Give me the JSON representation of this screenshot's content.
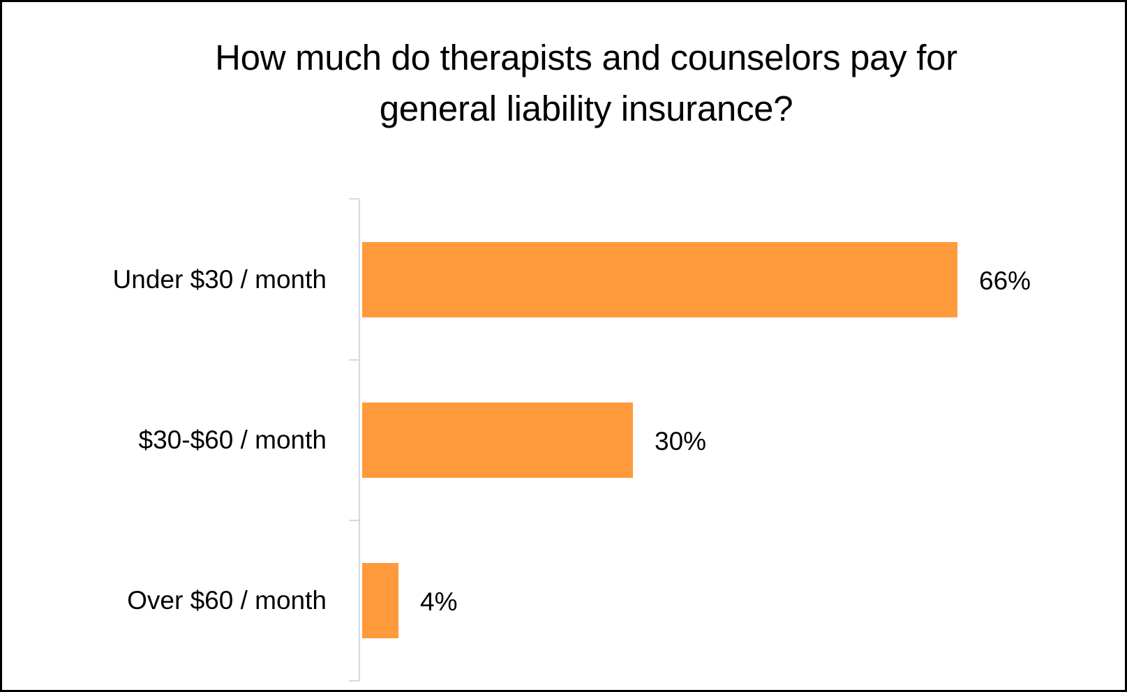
{
  "chart_data": {
    "type": "bar",
    "orientation": "horizontal",
    "title": "How much do therapists and counselors pay for general liability insurance?",
    "title_lines": [
      "How much do therapists and counselors pay for",
      "general liability insurance?"
    ],
    "categories": [
      "Under $30 / month",
      "$30-$60 / month",
      "Over $60 / month"
    ],
    "values": [
      66,
      30,
      4
    ],
    "value_labels": [
      "66%",
      "30%",
      "4%"
    ],
    "unit": "%",
    "xlabel": "",
    "ylabel": "",
    "xlim": [
      0,
      70
    ],
    "grid": false,
    "legend": null,
    "bar_color": "#FF9A3C",
    "axis_color": "#D9D9D9"
  }
}
